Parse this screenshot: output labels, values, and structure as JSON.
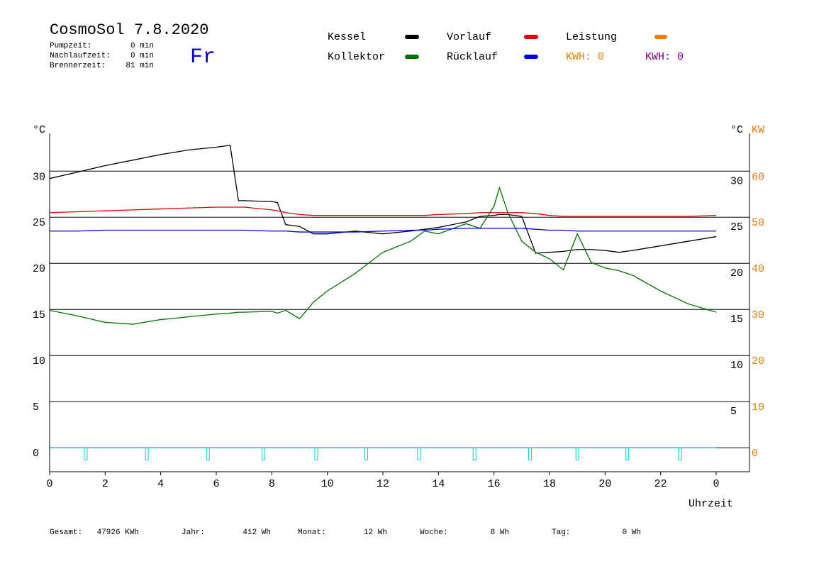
{
  "chart_data": {
    "type": "line",
    "title": "CosmoSol 7.8.2020",
    "day": "Fr",
    "stats": [
      {
        "label": "Pumpzeit:",
        "value": "0 min"
      },
      {
        "label": "Nachlaufzeit:",
        "value": "0 min"
      },
      {
        "label": "Brennerzeit:",
        "value": "81 min"
      }
    ],
    "x": [
      0,
      1,
      2,
      3,
      4,
      5,
      6,
      6.5,
      6.8,
      7,
      8,
      8.2,
      8.5,
      9,
      9.5,
      10,
      11,
      12,
      13,
      13.5,
      14,
      15,
      15.5,
      16,
      16.2,
      16.5,
      17,
      17.5,
      18,
      18.5,
      19,
      19.5,
      20,
      20.5,
      21,
      22,
      23,
      24
    ],
    "series": [
      {
        "name": "Kessel",
        "color": "#000000",
        "values": [
          29.2,
          29.9,
          30.6,
          31.2,
          31.8,
          32.3,
          32.6,
          32.8,
          26.8,
          26.8,
          26.7,
          26.6,
          24.2,
          24.0,
          23.2,
          23.2,
          23.5,
          23.2,
          23.5,
          23.7,
          23.9,
          24.5,
          25.1,
          25.2,
          25.3,
          25.3,
          25.1,
          21.1,
          21.2,
          21.3,
          21.5,
          21.5,
          21.4,
          21.2,
          21.4,
          21.9,
          22.4,
          22.9
        ]
      },
      {
        "name": "Vorlauf",
        "color": "#e00000",
        "values": [
          25.5,
          25.6,
          25.7,
          25.8,
          25.9,
          26.0,
          26.1,
          26.1,
          26.1,
          26.1,
          25.8,
          25.7,
          25.5,
          25.3,
          25.2,
          25.2,
          25.2,
          25.2,
          25.2,
          25.2,
          25.3,
          25.4,
          25.5,
          25.5,
          25.5,
          25.5,
          25.5,
          25.4,
          25.2,
          25.1,
          25.1,
          25.1,
          25.1,
          25.1,
          25.1,
          25.1,
          25.1,
          25.2
        ]
      },
      {
        "name": "Kollektor",
        "color": "#007000",
        "values": [
          14.9,
          14.3,
          13.6,
          13.4,
          13.9,
          14.2,
          14.5,
          14.6,
          14.7,
          14.7,
          14.8,
          14.6,
          14.9,
          14.0,
          15.8,
          17.0,
          18.9,
          21.2,
          22.4,
          23.5,
          23.2,
          24.3,
          23.8,
          26.2,
          28.2,
          25.5,
          22.4,
          21.2,
          20.5,
          19.3,
          23.2,
          20.1,
          19.5,
          19.2,
          18.7,
          17.0,
          15.6,
          14.7
        ]
      },
      {
        "name": "Rücklauf",
        "color": "#0000e0",
        "values": [
          23.5,
          23.5,
          23.6,
          23.6,
          23.6,
          23.6,
          23.6,
          23.6,
          23.6,
          23.6,
          23.5,
          23.5,
          23.5,
          23.4,
          23.4,
          23.4,
          23.4,
          23.5,
          23.6,
          23.6,
          23.7,
          23.8,
          23.8,
          23.8,
          23.8,
          23.8,
          23.8,
          23.7,
          23.6,
          23.6,
          23.5,
          23.5,
          23.5,
          23.5,
          23.5,
          23.5,
          23.5,
          23.5
        ]
      }
    ],
    "power_legend": {
      "name": "Leistung",
      "color": "#f08000"
    },
    "kwh_labels": [
      {
        "text": "KWH: 0",
        "color": "#e08000"
      },
      {
        "text": "KWH: 0",
        "color": "#800080"
      }
    ],
    "pulse_x": [
      1.3,
      3.5,
      5.7,
      7.7,
      9.6,
      11.4,
      13.3,
      15.3,
      17.3,
      19.0,
      20.8,
      22.7
    ],
    "pulse_color": "#00d0d0",
    "ylabel": "°C",
    "y2unit": "°C",
    "y2label": "KW",
    "xlabel": "Uhrzeit",
    "xlim": [
      0,
      25.2
    ],
    "xticks": [
      0,
      2,
      4,
      6,
      8,
      10,
      12,
      14,
      16,
      18,
      20,
      22,
      {
        "value": 24,
        "label": "0"
      }
    ],
    "ylim": [
      -2.6,
      34.1
    ],
    "yticks": [
      0,
      5,
      10,
      15,
      20,
      25,
      30
    ],
    "y2lim": [
      -5.2,
      68.2
    ],
    "y2ticks": [
      0,
      10,
      20,
      30,
      40,
      50,
      60
    ],
    "grid": true,
    "footer": [
      {
        "label": "Gesamt:",
        "value": "47926 KWh"
      },
      {
        "label": "Jahr:",
        "value": "412 Wh"
      },
      {
        "label": "Monat:",
        "value": "12 Wh"
      },
      {
        "label": "Woche:",
        "value": "8 Wh"
      },
      {
        "label": "Tag:",
        "value": "0 Wh"
      }
    ]
  }
}
